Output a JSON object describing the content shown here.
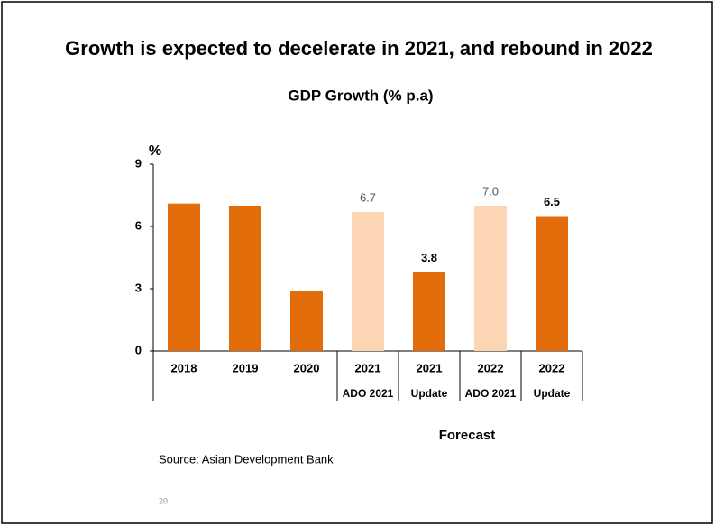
{
  "slide_title": "Growth is expected to decelerate in 2021, and rebound in 2022",
  "source": "Source: Asian Development Bank",
  "page_number": "20",
  "chart_data": {
    "type": "bar",
    "title": "GDP Growth (% p.a)",
    "y_label": "%",
    "categories": [
      "2018",
      "2019",
      "2020",
      "2021",
      "2021",
      "2022",
      "2022"
    ],
    "sublabels": [
      null,
      null,
      null,
      "ADO 2021",
      "Update",
      "ADO 2021",
      "Update"
    ],
    "group_label": "Forecast",
    "values": [
      7.1,
      7.0,
      2.9,
      6.7,
      3.8,
      7.0,
      6.5
    ],
    "value_labels": [
      null,
      null,
      null,
      "6.7",
      "3.8",
      "7.0",
      "6.5"
    ],
    "colors": [
      "#e36c0a",
      "#e36c0a",
      "#e36c0a",
      "#fcd5b5",
      "#e36c0a",
      "#fcd5b5",
      "#e36c0a"
    ],
    "ylim": [
      0,
      9
    ],
    "yticks": [
      0,
      3,
      6,
      9
    ]
  }
}
